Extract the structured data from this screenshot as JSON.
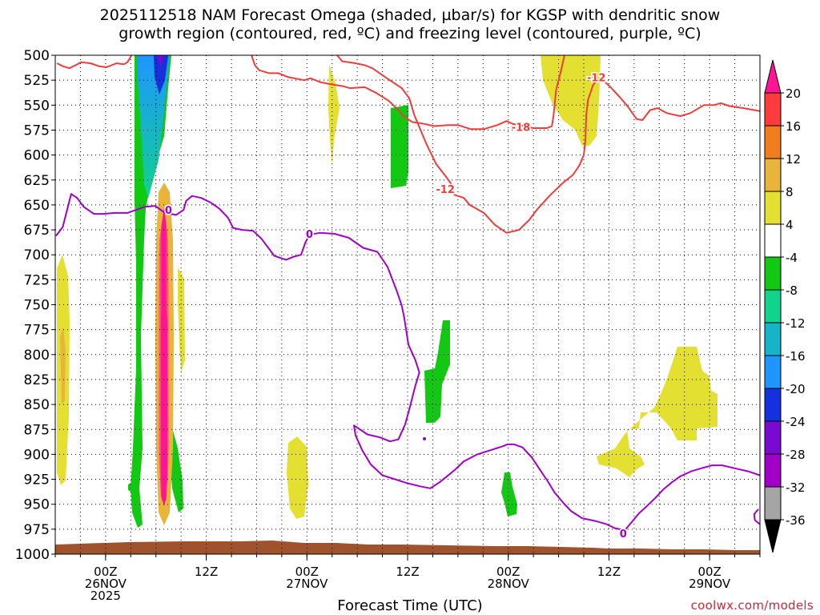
{
  "title_lines": [
    "2025112518 NAM Forecast Omega (shaded, µbar/s) for KGSP with dendritic snow",
    "growth region (contoured, red, ºC) and freezing level (contoured, purple, ºC)"
  ],
  "x_axis_title": "Forecast Time (UTC)",
  "credit": "coolwx.com/models",
  "chart_data": {
    "type": "heatmap",
    "x_ticks": [
      {
        "h": 6,
        "label": [
          "00Z",
          "26NOV",
          "2025"
        ]
      },
      {
        "h": 18,
        "label": [
          "12Z"
        ]
      },
      {
        "h": 30,
        "label": [
          "00Z",
          "27NOV"
        ]
      },
      {
        "h": 42,
        "label": [
          "12Z"
        ]
      },
      {
        "h": 54,
        "label": [
          "00Z",
          "28NOV"
        ]
      },
      {
        "h": 66,
        "label": [
          "12Z"
        ]
      },
      {
        "h": 78,
        "label": [
          "00Z",
          "29NOV"
        ]
      }
    ],
    "x_range_hours": [
      0,
      84
    ],
    "y_range_mb": [
      500,
      1000
    ],
    "y_ticks": [
      "500",
      "525",
      "550",
      "575",
      "600",
      "625",
      "650",
      "675",
      "700",
      "725",
      "750",
      "775",
      "800",
      "825",
      "850",
      "875",
      "900",
      "925",
      "950",
      "975",
      "1000"
    ],
    "grid": "dotted",
    "colorbar": {
      "labels": [
        "20",
        "16",
        "12",
        "8",
        "4",
        "-4",
        "-8",
        "-12",
        "-16",
        "-20",
        "-24",
        "-28",
        "-32",
        "-36"
      ],
      "colors": [
        "#ff1493",
        "#ff3b3b",
        "#f07d1e",
        "#e8b43c",
        "#e3e032",
        "#ffffff",
        "#12c812",
        "#10d48c",
        "#16b4c8",
        "#1e96ff",
        "#1432dc",
        "#780ad2",
        "#a000c8",
        "#a5a5a5",
        "#000000"
      ]
    },
    "contour_labels": [
      {
        "text": "-18",
        "color": "#f03c3c",
        "h": 55.5,
        "p": 572
      },
      {
        "text": "-12",
        "color": "#f03c3c",
        "h": 46.5,
        "p": 634
      },
      {
        "text": "-12",
        "color": "#f03c3c",
        "h": 64.5,
        "p": 522
      },
      {
        "text": "0",
        "color": "#a000c8",
        "h": 13.5,
        "p": 655
      },
      {
        "text": "0",
        "color": "#a000c8",
        "h": 30.3,
        "p": 679
      },
      {
        "text": "0",
        "color": "#a000c8",
        "h": 67.7,
        "p": 979
      }
    ],
    "series": [
      {
        "name": "-12",
        "color": "#f03c3c",
        "points": [
          [
            0.2,
            508
          ],
          [
            0.9,
            511
          ],
          [
            1.7,
            513
          ],
          [
            2.4,
            510
          ],
          [
            3.1,
            507
          ],
          [
            4.2,
            508
          ],
          [
            5.2,
            511
          ],
          [
            6.1,
            512
          ],
          [
            7.3,
            508
          ],
          [
            8.2,
            509
          ],
          [
            8.6,
            507
          ],
          [
            9.1,
            500
          ]
        ]
      },
      {
        "name": "-12",
        "color": "#f03c3c",
        "points": [
          [
            33.6,
            500
          ],
          [
            34.2,
            506
          ],
          [
            35.8,
            508
          ],
          [
            36.9,
            510
          ],
          [
            37.8,
            513
          ],
          [
            39.7,
            524
          ],
          [
            41.3,
            533
          ],
          [
            42.2,
            543
          ],
          [
            42.8,
            560
          ],
          [
            43.7,
            578
          ],
          [
            44.3,
            590
          ],
          [
            45.4,
            609
          ],
          [
            46.6,
            622
          ],
          [
            47.2,
            629
          ],
          [
            47.6,
            640
          ],
          [
            48.7,
            643
          ],
          [
            49.4,
            650
          ],
          [
            51.1,
            658
          ],
          [
            52.4,
            670
          ],
          [
            53.8,
            678
          ],
          [
            55.3,
            675
          ],
          [
            56.5,
            665
          ],
          [
            57.4,
            655
          ],
          [
            58.9,
            641
          ],
          [
            60.5,
            628
          ],
          [
            61.7,
            620
          ],
          [
            62.5,
            610
          ],
          [
            63.0,
            600
          ],
          [
            63.2,
            585
          ],
          [
            63.3,
            560
          ],
          [
            63.5,
            545
          ],
          [
            64.1,
            530
          ],
          [
            64.6,
            524
          ],
          [
            65.2,
            524
          ],
          [
            66.2,
            532
          ],
          [
            67.4,
            543
          ],
          [
            68.3,
            552
          ],
          [
            69.3,
            564
          ],
          [
            70.0,
            565
          ],
          [
            70.9,
            555
          ],
          [
            71.8,
            553
          ],
          [
            72.9,
            558
          ],
          [
            74.5,
            561
          ],
          [
            75.7,
            558
          ],
          [
            77.3,
            550
          ],
          [
            78.5,
            550
          ],
          [
            79.3,
            548
          ],
          [
            80.4,
            551
          ],
          [
            82.0,
            553
          ],
          [
            84,
            556
          ]
        ]
      },
      {
        "name": "-18",
        "color": "#f03c3c",
        "points": [
          [
            23.4,
            500
          ],
          [
            23.8,
            510
          ],
          [
            24.3,
            515
          ],
          [
            25.5,
            518
          ],
          [
            26.6,
            518
          ],
          [
            27.8,
            522
          ],
          [
            29.7,
            525
          ],
          [
            30.4,
            523
          ],
          [
            31.6,
            527
          ],
          [
            32.8,
            529
          ],
          [
            34.3,
            531
          ],
          [
            35.1,
            533
          ],
          [
            36.9,
            532
          ],
          [
            38.3,
            538
          ],
          [
            39.8,
            546
          ],
          [
            41.1,
            557
          ],
          [
            41.6,
            562
          ],
          [
            42.6,
            567
          ],
          [
            43.5,
            568
          ],
          [
            45.2,
            571
          ],
          [
            46.8,
            570
          ],
          [
            48.0,
            570
          ],
          [
            49.5,
            574
          ],
          [
            51.1,
            574
          ],
          [
            52.7,
            570
          ],
          [
            53.8,
            566
          ],
          [
            54.6,
            569
          ],
          [
            55.3,
            570
          ],
          [
            57.0,
            573
          ],
          [
            58.6,
            573
          ],
          [
            59.2,
            571
          ],
          [
            59.4,
            560
          ],
          [
            59.7,
            535
          ],
          [
            60.3,
            515
          ],
          [
            60.7,
            500
          ]
        ]
      },
      {
        "name": "0",
        "color": "#a000c8",
        "points": [
          [
            0.1,
            681
          ],
          [
            0.9,
            672
          ],
          [
            1.9,
            639
          ],
          [
            2.6,
            643
          ],
          [
            3.4,
            652
          ],
          [
            4.6,
            659
          ],
          [
            5.7,
            659
          ],
          [
            7.1,
            658
          ],
          [
            8.6,
            658
          ],
          [
            10.6,
            652
          ],
          [
            11.9,
            651
          ],
          [
            13.1,
            658
          ],
          [
            14.4,
            660
          ],
          [
            15.3,
            655
          ],
          [
            15.6,
            646
          ],
          [
            16.3,
            641
          ],
          [
            17.4,
            643
          ],
          [
            18.6,
            648
          ],
          [
            19.6,
            654
          ],
          [
            20.6,
            663
          ],
          [
            21.2,
            673
          ],
          [
            22.2,
            675
          ],
          [
            23.6,
            676
          ],
          [
            24.6,
            684
          ],
          [
            25.3,
            692
          ],
          [
            26.1,
            701
          ],
          [
            26.8,
            703
          ],
          [
            27.5,
            705
          ],
          [
            28.4,
            702
          ],
          [
            29.3,
            700
          ],
          [
            29.8,
            688
          ],
          [
            30.3,
            680
          ],
          [
            31.5,
            678
          ],
          [
            33.3,
            679
          ],
          [
            35.0,
            683
          ],
          [
            36.7,
            693
          ],
          [
            38.4,
            697
          ],
          [
            39.6,
            712
          ],
          [
            40.7,
            736
          ],
          [
            41.3,
            751
          ],
          [
            41.6,
            763
          ],
          [
            42.1,
            790
          ],
          [
            42.9,
            805
          ],
          [
            43.4,
            818
          ],
          [
            42.9,
            832
          ],
          [
            42.2,
            855
          ],
          [
            41.7,
            870
          ],
          [
            40.9,
            885
          ],
          [
            39.9,
            887
          ],
          [
            38.7,
            883
          ],
          [
            37.2,
            880
          ],
          [
            36.5,
            876
          ],
          [
            35.6,
            871
          ],
          [
            35.8,
            881
          ],
          [
            36.6,
            896
          ],
          [
            37.6,
            910
          ],
          [
            39.0,
            921
          ],
          [
            40.5,
            925
          ],
          [
            42.0,
            929
          ],
          [
            43.5,
            932
          ],
          [
            44.7,
            934
          ],
          [
            45.8,
            928
          ],
          [
            46.7,
            922
          ],
          [
            47.7,
            915
          ],
          [
            48.7,
            907
          ],
          [
            50.3,
            900
          ],
          [
            51.8,
            896
          ],
          [
            53.3,
            892
          ],
          [
            53.9,
            890
          ],
          [
            54.7,
            890
          ],
          [
            55.7,
            893
          ],
          [
            56.8,
            903
          ],
          [
            57.9,
            917
          ],
          [
            58.7,
            927
          ],
          [
            59.5,
            938
          ],
          [
            60.6,
            949
          ],
          [
            61.5,
            957
          ],
          [
            62.8,
            964
          ],
          [
            64.5,
            967
          ],
          [
            65.7,
            970
          ],
          [
            66.7,
            974
          ],
          [
            67.9,
            976
          ],
          [
            68.8,
            967
          ],
          [
            69.6,
            959
          ],
          [
            70.5,
            952
          ],
          [
            71.5,
            944
          ],
          [
            72.5,
            935
          ],
          [
            73.5,
            928
          ],
          [
            74.5,
            922
          ],
          [
            75.8,
            917
          ],
          [
            77.0,
            914
          ],
          [
            78.3,
            911
          ],
          [
            79.5,
            911
          ],
          [
            81.0,
            914
          ],
          [
            82.6,
            917
          ],
          [
            84.0,
            921
          ]
        ]
      },
      {
        "name": "0",
        "color": "#a000c8",
        "points": [
          [
            83.8,
            955
          ],
          [
            83.3,
            960
          ],
          [
            83.4,
            966
          ],
          [
            84,
            970
          ]
        ]
      }
    ]
  }
}
